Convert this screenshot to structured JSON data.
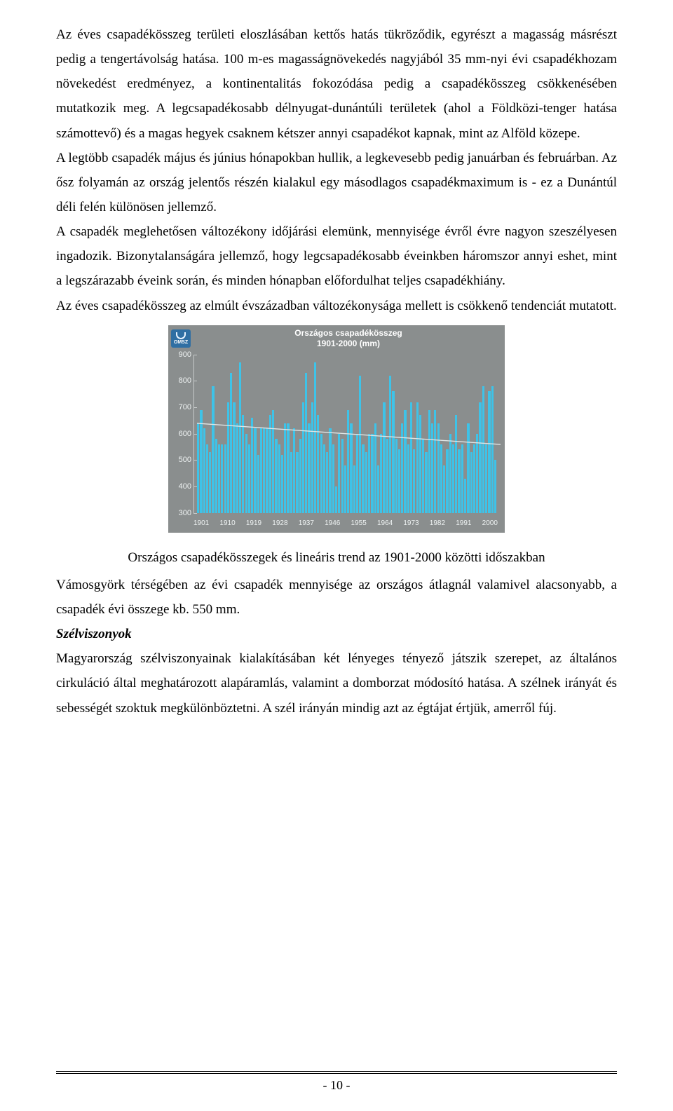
{
  "paragraphs": {
    "p1": "Az éves csapadékösszeg területi eloszlásában kettős hatás tükröződik, egyrészt a magasság másrészt pedig a tengertávolság hatása. 100 m-es magasságnövekedés nagyjából 35 mm-nyi évi csapadékhozam növekedést eredményez, a kontinentalitás fokozódása pedig a csapadékösszeg csökkenésében mutatkozik meg. A legcsapadékosabb délnyugat-dunántúli területek (ahol a Földközi-tenger hatása számottevő) és a magas hegyek csaknem kétszer annyi csapadékot kapnak, mint az Alföld közepe.",
    "p2": "A legtöbb csapadék május és június hónapokban hullik, a legkevesebb pedig januárban és februárban. Az ősz folyamán az ország jelentős részén kialakul egy másodlagos csapadékmaximum is - ez a Dunántúl déli felén különösen jellemző.",
    "p3": "A csapadék meglehetősen változékony időjárási elemünk, mennyisége évről évre nagyon szeszélyesen ingadozik. Bizonytalanságára jellemző, hogy legcsapadékosabb éveinkben háromszor annyi eshet, mint a legszárazabb éveink során, és minden hónapban előfordulhat teljes csapadékhiány.",
    "p4": "Az éves csapadékösszeg az elmúlt évszázadban változékonysága mellett is csökkenő tendenciát mutatott.",
    "caption": "Országos csapadékösszegek és lineáris trend az 1901-2000 közötti időszakban",
    "p5": "Vámosgyörk térségében az évi csapadék mennyisége az országos átlagnál valamivel alacsonyabb, a csapadék évi összege kb. 550 mm.",
    "h1": "Szélviszonyok",
    "p6": "Magyarország szélviszonyainak kialakításában két lényeges tényező játszik szerepet, az általános cirkuláció által meghatározott alapáramlás, valamint a domborzat módosító hatása. A szélnek irányát és sebességét szoktuk megkülönböztetni. A szél irányán mindig azt az égtájat értjük, amerről fúj."
  },
  "chart": {
    "type": "bar",
    "logo_text": "OMSZ",
    "title_line1": "Országos csapadékösszeg",
    "title_line2": "1901-2000 (mm)",
    "ymin": 300,
    "ymax": 900,
    "ytick_step": 100,
    "yticks": [
      300,
      400,
      500,
      600,
      700,
      800,
      900
    ],
    "xlabels": [
      "1901",
      "1910",
      "1919",
      "1928",
      "1937",
      "1946",
      "1955",
      "1964",
      "1973",
      "1982",
      "1991",
      "2000"
    ],
    "bar_color": "#3ec3e8",
    "background_color": "#8a8e8e",
    "text_color": "#eef2f2",
    "trend_color": "#dfe6e6",
    "trend_start_value": 640,
    "trend_end_value": 560,
    "values": [
      640,
      690,
      620,
      560,
      530,
      780,
      580,
      560,
      560,
      560,
      720,
      830,
      720,
      640,
      870,
      670,
      600,
      560,
      660,
      620,
      520,
      620,
      620,
      620,
      670,
      690,
      580,
      560,
      520,
      640,
      640,
      530,
      620,
      530,
      580,
      720,
      830,
      640,
      720,
      870,
      670,
      600,
      560,
      530,
      620,
      560,
      400,
      600,
      580,
      480,
      690,
      640,
      480,
      600,
      820,
      560,
      530,
      600,
      600,
      640,
      480,
      600,
      720,
      580,
      820,
      760,
      580,
      540,
      640,
      690,
      560,
      720,
      540,
      720,
      670,
      580,
      530,
      690,
      640,
      690,
      640,
      560,
      480,
      540,
      600,
      560,
      670,
      540,
      560,
      430,
      640,
      530,
      560,
      600,
      720,
      780,
      560,
      760,
      780,
      500
    ]
  },
  "page_number": "- 10 -"
}
